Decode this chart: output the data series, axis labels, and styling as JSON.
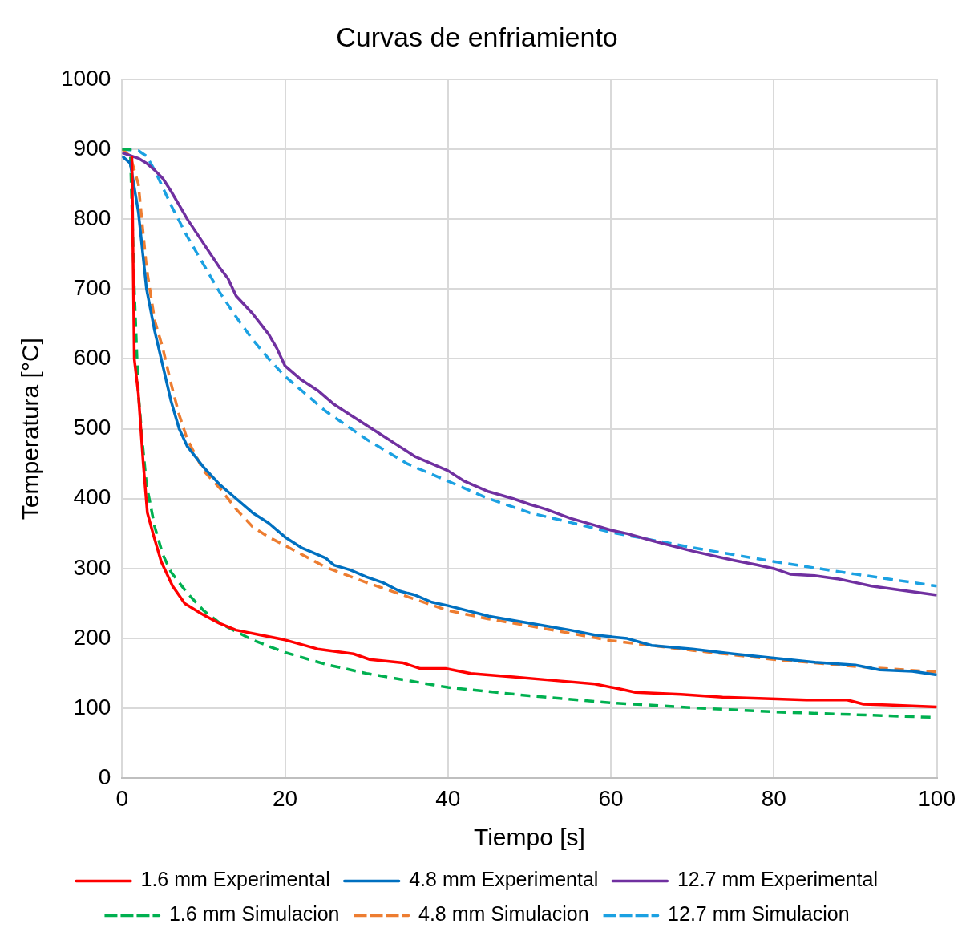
{
  "chart_data": {
    "type": "line",
    "title": "Curvas de enfriamiento",
    "xlabel": "Tiempo [s]",
    "ylabel": "Temperatura [°C]",
    "xlim": [
      0,
      100
    ],
    "xticks": [
      0,
      20,
      40,
      60,
      80,
      100
    ],
    "ylim": [
      0,
      1000
    ],
    "yticks": [
      0,
      100,
      200,
      300,
      400,
      500,
      600,
      700,
      800,
      900,
      1000
    ],
    "grid": true,
    "legend": "bottom",
    "marker": "none",
    "series": [
      {
        "name": "1.6 mm Experimental",
        "color": "#ff0000",
        "line_style": "solid",
        "x": [
          1.2,
          1.5,
          2,
          2.6,
          3.1,
          3.8,
          4.8,
          6.2,
          7.7,
          9.8,
          11.9,
          14,
          17,
          20,
          24,
          28.4,
          30.4,
          34.5,
          36.6,
          39.7,
          42.8,
          48,
          53,
          58,
          61,
          63,
          68.6,
          73.7,
          78.9,
          84,
          89,
          91,
          94,
          100
        ],
        "values": [
          890,
          600,
          550,
          450,
          380,
          350,
          310,
          275,
          250,
          235,
          222,
          212,
          205,
          198,
          185,
          178,
          170,
          165,
          157,
          157,
          150,
          145,
          140,
          135,
          128,
          123,
          120,
          116,
          114,
          112,
          112,
          106,
          105,
          102
        ]
      },
      {
        "name": "4.8 mm Experimental",
        "color": "#0070c0",
        "line_style": "solid",
        "x": [
          0,
          1,
          2,
          3,
          4,
          5,
          6,
          7,
          8,
          10,
          12,
          14,
          16,
          18,
          20,
          22,
          25,
          26,
          28,
          30,
          32,
          34,
          36,
          38,
          40,
          45,
          50,
          55,
          58,
          62,
          65,
          70,
          75,
          80,
          85,
          90,
          93,
          97,
          100
        ],
        "values": [
          890,
          880,
          810,
          700,
          640,
          590,
          540,
          500,
          475,
          445,
          420,
          400,
          380,
          365,
          345,
          330,
          315,
          305,
          298,
          288,
          280,
          268,
          262,
          252,
          247,
          232,
          222,
          212,
          205,
          200,
          190,
          185,
          178,
          172,
          166,
          162,
          155,
          153,
          148
        ]
      },
      {
        "name": "12.7 mm Experimental",
        "color": "#7030a0",
        "line_style": "solid",
        "x": [
          0,
          2,
          3,
          4,
          5,
          6,
          7,
          8,
          10,
          12,
          13,
          14,
          16,
          18,
          19,
          20,
          22,
          24,
          26,
          28,
          30,
          32,
          34,
          36,
          40,
          42,
          45,
          48,
          50,
          52,
          55,
          58,
          60,
          62,
          65,
          70,
          75,
          78,
          80,
          82,
          85,
          88,
          90,
          92,
          95,
          100
        ],
        "values": [
          895,
          887,
          880,
          870,
          858,
          840,
          820,
          800,
          765,
          730,
          715,
          690,
          665,
          635,
          615,
          590,
          570,
          555,
          535,
          520,
          505,
          490,
          475,
          460,
          440,
          425,
          410,
          400,
          392,
          385,
          372,
          362,
          355,
          350,
          340,
          325,
          312,
          305,
          300,
          292,
          290,
          285,
          280,
          275,
          270,
          262
        ]
      },
      {
        "name": "1.6 mm Simulacion",
        "color": "#00b050",
        "line_style": "dashed",
        "x": [
          0,
          1,
          1.5,
          2,
          2.5,
          3,
          4,
          5,
          6,
          8,
          10,
          12,
          14,
          16,
          20,
          25,
          30,
          40,
          50,
          60,
          70,
          80,
          90,
          100
        ],
        "values": [
          900,
          900,
          700,
          550,
          480,
          420,
          360,
          320,
          295,
          265,
          240,
          222,
          210,
          198,
          180,
          163,
          150,
          130,
          118,
          108,
          101,
          95,
          91,
          87
        ]
      },
      {
        "name": "4.8 mm Simulacion",
        "color": "#ed7d31",
        "line_style": "dashed",
        "x": [
          0,
          1,
          2,
          3,
          4,
          5,
          6,
          7,
          8,
          10,
          12,
          14,
          16,
          18,
          20,
          25,
          30,
          35,
          40,
          45,
          50,
          60,
          70,
          80,
          90,
          100
        ],
        "values": [
          900,
          890,
          850,
          730,
          655,
          615,
          565,
          520,
          485,
          440,
          415,
          385,
          360,
          345,
          333,
          302,
          280,
          260,
          240,
          228,
          218,
          197,
          183,
          170,
          160,
          152
        ]
      },
      {
        "name": "12.7 mm Simulacion",
        "color": "#1ba1e2",
        "line_style": "dashed",
        "x": [
          0,
          2,
          3,
          4,
          6,
          8,
          10,
          12,
          14,
          16,
          18,
          20,
          25,
          30,
          35,
          40,
          45,
          50,
          55,
          60,
          70,
          80,
          90,
          100
        ],
        "values": [
          900,
          898,
          890,
          870,
          820,
          775,
          735,
          695,
          660,
          628,
          600,
          575,
          525,
          485,
          450,
          425,
          400,
          380,
          366,
          352,
          330,
          310,
          292,
          275
        ]
      }
    ]
  }
}
